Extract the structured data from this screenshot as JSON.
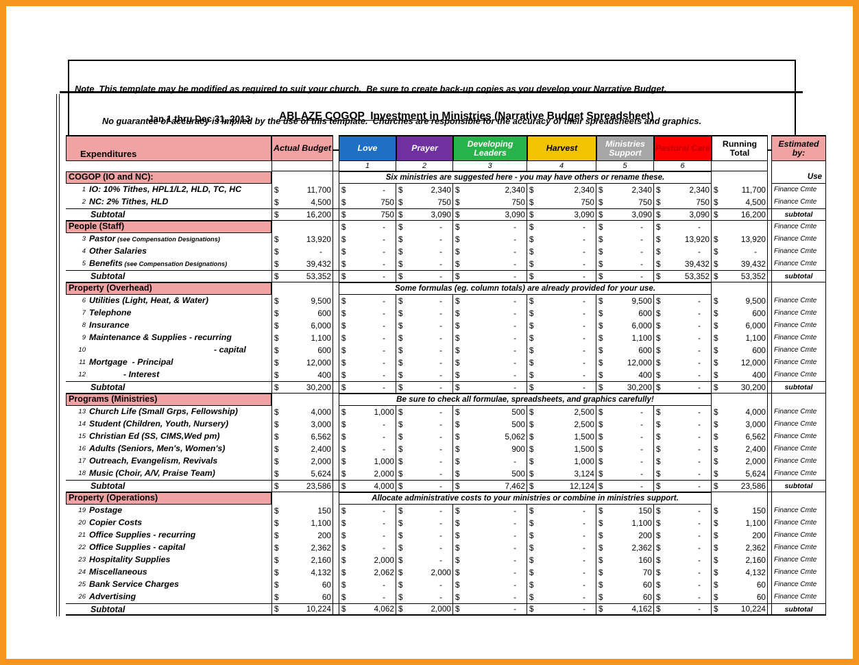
{
  "page": {
    "note_line1": "Note  This template may be modified as required to suit your church.  Be sure to create back-up copies as you develop your Narrative Budget.",
    "note_line2": "No guarantee of accuracy is implied by the use of this template.  Churches are responsible for the accuracy of their spreadsheets and graphics.",
    "date_range": "Jan 1 thru Dec 31, 2013",
    "title_underlined": "ABLAZE COGOP  Investment in Ministries",
    "title_rest": " (Narrative Budget Spreadsheet)"
  },
  "colors": {
    "frame": "#F7941E",
    "pink": "#F1A3A3",
    "love": "#1F6FC6",
    "prayer": "#7030A0",
    "developing": "#28B44B",
    "harvest": "#F2C300",
    "ministries": "#A6A6A6",
    "pastoral_bg": "#FE0000",
    "pastoral_text": "#C00000"
  },
  "header": {
    "expenditures": "Expenditures",
    "actual": "Actual Budget",
    "ministries": [
      {
        "label": "Love",
        "num": "1"
      },
      {
        "label": "Prayer",
        "num": "2"
      },
      {
        "label": "Developing Leaders",
        "num": "3"
      },
      {
        "label": "Harvest",
        "num": "4"
      },
      {
        "label": "Ministries Support",
        "num": "5"
      },
      {
        "label": "Pastoral Care",
        "num": "6"
      }
    ],
    "running": "Running Total",
    "estimated": "Estimated by:"
  },
  "sections": [
    {
      "title": "COGOP (IO and NC):",
      "note": "Six ministries are suggested here - you may have others or rename these.",
      "est": "Use",
      "rows": [
        {
          "num": "1",
          "label": "IO: 10% Tithes, HPL1/L2, HLD, TC, HC",
          "cells": [
            "11,700",
            "-",
            "2,340",
            "2,340",
            "2,340",
            "2,340",
            "2,340",
            "11,700"
          ],
          "est": "Finance Cmte"
        },
        {
          "num": "2",
          "label": "NC: 2% Tithes, HLD",
          "cells": [
            "4,500",
            "750",
            "750",
            "750",
            "750",
            "750",
            "750",
            "4,500"
          ],
          "est": "Finance Cmte"
        }
      ],
      "subtotal": {
        "label": "Subtotal",
        "cells": [
          "16,200",
          "750",
          "3,090",
          "3,090",
          "3,090",
          "3,090",
          "3,090",
          "16,200"
        ],
        "est": "subtotal"
      }
    },
    {
      "title": "People (Staff)",
      "cells": [
        "",
        "-",
        "-",
        "-",
        "-",
        "-",
        "-",
        ""
      ],
      "est": "Finance Cmte",
      "rows": [
        {
          "num": "3",
          "label": "Pastor",
          "label_note": "(see Compensation Designations)",
          "cells": [
            "13,920",
            "-",
            "-",
            "-",
            "-",
            "-",
            "13,920",
            "13,920"
          ],
          "est": "Finance Cmte"
        },
        {
          "num": "4",
          "label": "Other Salaries",
          "cells": [
            "-",
            "-",
            "-",
            "-",
            "-",
            "-",
            "-",
            "-"
          ],
          "est": "Finance Cmte"
        },
        {
          "num": "5",
          "label": "Benefits",
          "label_note": "(see Compensation Designations)",
          "cells": [
            "39,432",
            "-",
            "-",
            "-",
            "-",
            "-",
            "39,432",
            "39,432"
          ],
          "est": "Finance Cmte"
        }
      ],
      "subtotal": {
        "label": "Subtotal",
        "cells": [
          "53,352",
          "-",
          "-",
          "-",
          "-",
          "-",
          "53,352",
          "53,352"
        ],
        "est": "subtotal"
      }
    },
    {
      "title": "Property (Overhead)",
      "note": "Some formulas (eg. column totals) are already provided for your use.",
      "est": "",
      "rows": [
        {
          "num": "6",
          "label": "Utilities (Light, Heat, & Water)",
          "cells": [
            "9,500",
            "-",
            "-",
            "-",
            "-",
            "9,500",
            "-",
            "9,500"
          ],
          "est": "Finance Cmte"
        },
        {
          "num": "7",
          "label": "Telephone",
          "cells": [
            "600",
            "-",
            "-",
            "-",
            "-",
            "600",
            "-",
            "600"
          ],
          "est": "Finance Cmte"
        },
        {
          "num": "8",
          "label": "Insurance",
          "cells": [
            "6,000",
            "-",
            "-",
            "-",
            "-",
            "6,000",
            "-",
            "6,000"
          ],
          "est": "Finance Cmte"
        },
        {
          "num": "9",
          "label": "Maintenance & Supplies - recurring",
          "cells": [
            "1,100",
            "-",
            "-",
            "-",
            "-",
            "1,100",
            "-",
            "1,100"
          ],
          "est": "Finance Cmte"
        },
        {
          "num": "10",
          "label": "- capital",
          "indent": 182,
          "cells": [
            "600",
            "-",
            "-",
            "-",
            "-",
            "600",
            "-",
            "600"
          ],
          "est": "Finance Cmte"
        },
        {
          "num": "11",
          "label": "Mortgage  - Principal",
          "cells": [
            "12,000",
            "-",
            "-",
            "-",
            "-",
            "12,000",
            "-",
            "12,000"
          ],
          "est": "Finance Cmte"
        },
        {
          "num": "12",
          "label": "- Interest",
          "indent": 50,
          "cells": [
            "400",
            "-",
            "-",
            "-",
            "-",
            "400",
            "-",
            "400"
          ],
          "est": "Finance Cmte"
        }
      ],
      "subtotal": {
        "label": "Subtotal",
        "cells": [
          "30,200",
          "-",
          "-",
          "-",
          "-",
          "30,200",
          "-",
          "30,200"
        ],
        "est": "subtotal"
      }
    },
    {
      "title": "Programs (Ministries)",
      "note": "Be sure to check all formulae, spreadsheets, and graphics carefully!",
      "est": "",
      "rows": [
        {
          "num": "13",
          "label": "Church Life (Small Grps, Fellowship)",
          "cells": [
            "4,000",
            "1,000",
            "-",
            "500",
            "2,500",
            "-",
            "-",
            "4,000"
          ],
          "est": "Finance Cmte"
        },
        {
          "num": "14",
          "label": "Student (Children, Youth, Nursery)",
          "cells": [
            "3,000",
            "-",
            "-",
            "500",
            "2,500",
            "-",
            "-",
            "3,000"
          ],
          "est": "Finance Cmte"
        },
        {
          "num": "15",
          "label": "Christian Ed (SS, CIMS,Wed pm)",
          "cells": [
            "6,562",
            "-",
            "-",
            "5,062",
            "1,500",
            "-",
            "-",
            "6,562"
          ],
          "est": "Finance Cmte"
        },
        {
          "num": "16",
          "label": "Adults (Seniors, Men's, Women's)",
          "cells": [
            "2,400",
            "-",
            "-",
            "900",
            "1,500",
            "-",
            "-",
            "2,400"
          ],
          "est": "Finance Cmte"
        },
        {
          "num": "17",
          "label": "Outreach, Evangelism, Revivals",
          "cells": [
            "2,000",
            "1,000",
            "-",
            "-",
            "1,000",
            "-",
            "-",
            "2,000"
          ],
          "est": "Finance Cmte"
        },
        {
          "num": "18",
          "label": "Music (Choir, A/V, Praise Team)",
          "cells": [
            "5,624",
            "2,000",
            "-",
            "500",
            "3,124",
            "-",
            "-",
            "5,624"
          ],
          "est": "Finance Cmte"
        }
      ],
      "subtotal": {
        "label": "Subtotal",
        "cells": [
          "23,586",
          "4,000",
          "-",
          "7,462",
          "12,124",
          "-",
          "-",
          "23,586"
        ],
        "est": "subtotal"
      }
    },
    {
      "title": "Property (Operations)",
      "note": "Allocate administrative costs to your ministries or combine in ministries support.",
      "est": "",
      "rows": [
        {
          "num": "19",
          "label": "Postage",
          "cells": [
            "150",
            "-",
            "-",
            "-",
            "-",
            "150",
            "-",
            "150"
          ],
          "est": "Finance Cmte"
        },
        {
          "num": "20",
          "label": "Copier Costs",
          "cells": [
            "1,100",
            "-",
            "-",
            "-",
            "-",
            "1,100",
            "-",
            "1,100"
          ],
          "est": "Finance Cmte"
        },
        {
          "num": "21",
          "label": "Office Supplies - recurring",
          "cells": [
            "200",
            "-",
            "-",
            "-",
            "-",
            "200",
            "-",
            "200"
          ],
          "est": "Finance Cmte"
        },
        {
          "num": "22",
          "label": "Office Supplies - capital",
          "cells": [
            "2,362",
            "-",
            "-",
            "-",
            "-",
            "2,362",
            "-",
            "2,362"
          ],
          "est": "Finance Cmte"
        },
        {
          "num": "23",
          "label": "Hospitality Supplies",
          "cells": [
            "2,160",
            "2,000",
            "-",
            "-",
            "-",
            "160",
            "-",
            "2,160"
          ],
          "est": "Finance Cmte"
        },
        {
          "num": "24",
          "label": "Miscellaneous",
          "cells": [
            "4,132",
            "2,062",
            "2,000",
            "-",
            "-",
            "70",
            "-",
            "4,132"
          ],
          "est": "Finance Cmte"
        },
        {
          "num": "25",
          "label": "Bank Service Charges",
          "cells": [
            "60",
            "-",
            "-",
            "-",
            "-",
            "60",
            "-",
            "60"
          ],
          "est": "Finance Cmte"
        },
        {
          "num": "26",
          "label": "Advertising",
          "cells": [
            "60",
            "-",
            "-",
            "-",
            "-",
            "60",
            "-",
            "60"
          ],
          "est": "Finance Cmte"
        }
      ],
      "subtotal": {
        "label": "Subtotal",
        "cells": [
          "10,224",
          "4,062",
          "2,000",
          "-",
          "-",
          "4,162",
          "-",
          "10,224"
        ],
        "est": "subtotal",
        "last": true
      }
    }
  ]
}
